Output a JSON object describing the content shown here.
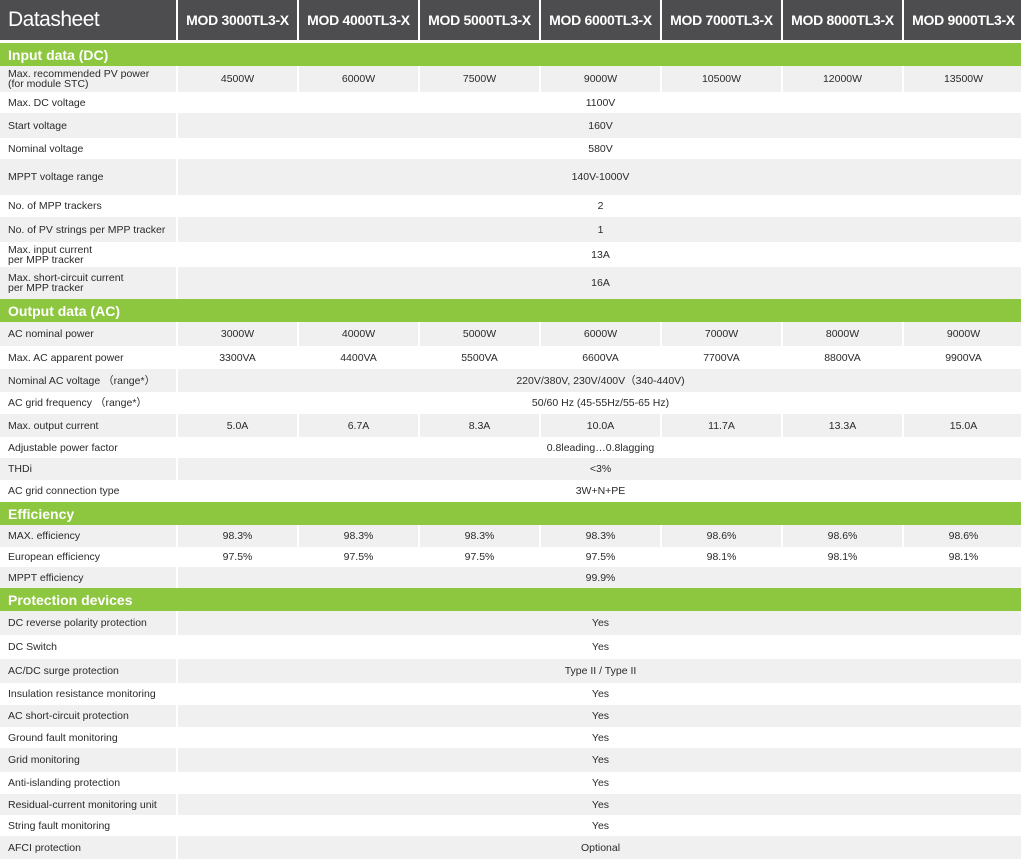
{
  "header": {
    "title": "Datasheet",
    "models": [
      "MOD 3000TL3-X",
      "MOD 4000TL3-X",
      "MOD 5000TL3-X",
      "MOD 6000TL3-X",
      "MOD 7000TL3-X",
      "MOD 8000TL3-X",
      "MOD 9000TL3-X"
    ]
  },
  "sections": [
    {
      "title": "Input data (DC)",
      "rows": [
        {
          "label": "Max. recommended PV power\n(for module STC)",
          "values": [
            "4500W",
            "6000W",
            "7500W",
            "9000W",
            "10500W",
            "12000W",
            "13500W"
          ]
        },
        {
          "label": "Max. DC voltage",
          "values": [
            "1100V"
          ]
        },
        {
          "label": "Start voltage",
          "values": [
            "160V"
          ]
        },
        {
          "label": "Nominal voltage",
          "values": [
            "580V"
          ]
        },
        {
          "label": "MPPT voltage range",
          "values": [
            "140V-1000V"
          ]
        },
        {
          "label": "No. of MPP trackers",
          "values": [
            "2"
          ]
        },
        {
          "label": "No. of PV strings per MPP tracker",
          "values": [
            "1"
          ]
        },
        {
          "label": "Max. input current\nper MPP tracker",
          "values": [
            "13A"
          ]
        },
        {
          "label": "Max. short-circuit current\nper MPP tracker",
          "values": [
            "16A"
          ]
        }
      ]
    },
    {
      "title": "Output data (AC)",
      "rows": [
        {
          "label": "AC nominal power",
          "values": [
            "3000W",
            "4000W",
            "5000W",
            "6000W",
            "7000W",
            "8000W",
            "9000W"
          ]
        },
        {
          "label": "Max. AC apparent power",
          "values": [
            "3300VA",
            "4400VA",
            "5500VA",
            "6600VA",
            "7700VA",
            "8800VA",
            "9900VA"
          ]
        },
        {
          "label": "Nominal AC voltage （range*）",
          "values": [
            "220V/380V, 230V/400V（340-440V)"
          ]
        },
        {
          "label": "AC grid frequency （range*）",
          "values": [
            "50/60 Hz (45-55Hz/55-65 Hz)"
          ]
        },
        {
          "label": "Max. output current",
          "values": [
            "5.0A",
            "6.7A",
            "8.3A",
            "10.0A",
            "11.7A",
            "13.3A",
            "15.0A"
          ]
        },
        {
          "label": "Adjustable power factor",
          "values": [
            "0.8leading…0.8lagging"
          ]
        },
        {
          "label": "THDi",
          "values": [
            "<3%"
          ]
        },
        {
          "label": "AC grid connection type",
          "values": [
            "3W+N+PE"
          ]
        }
      ]
    },
    {
      "title": "Efficiency",
      "rows": [
        {
          "label": "MAX. efficiency",
          "values": [
            "98.3%",
            "98.3%",
            "98.3%",
            "98.3%",
            "98.6%",
            "98.6%",
            "98.6%"
          ]
        },
        {
          "label": "European efficiency",
          "values": [
            "97.5%",
            "97.5%",
            "97.5%",
            "97.5%",
            "98.1%",
            "98.1%",
            "98.1%"
          ]
        },
        {
          "label": "MPPT efficiency",
          "values": [
            "99.9%"
          ]
        }
      ]
    },
    {
      "title": "Protection devices",
      "rows": [
        {
          "label": "DC reverse polarity protection",
          "values": [
            "Yes"
          ]
        },
        {
          "label": "DC Switch",
          "values": [
            "Yes"
          ]
        },
        {
          "label": "AC/DC surge protection",
          "values": [
            "Type II / Type II"
          ]
        },
        {
          "label": "Insulation resistance monitoring",
          "values": [
            "Yes"
          ]
        },
        {
          "label": "AC short-circuit protection",
          "values": [
            "Yes"
          ]
        },
        {
          "label": "Ground fault monitoring",
          "values": [
            "Yes"
          ]
        },
        {
          "label": "Grid monitoring",
          "values": [
            "Yes"
          ]
        },
        {
          "label": "Anti-islanding protection",
          "values": [
            "Yes"
          ]
        },
        {
          "label": "Residual-current monitoring unit",
          "values": [
            "Yes"
          ]
        },
        {
          "label": "String fault monitoring",
          "values": [
            "Yes"
          ]
        },
        {
          "label": "AFCI protection",
          "values": [
            "Optional"
          ]
        }
      ]
    }
  ]
}
